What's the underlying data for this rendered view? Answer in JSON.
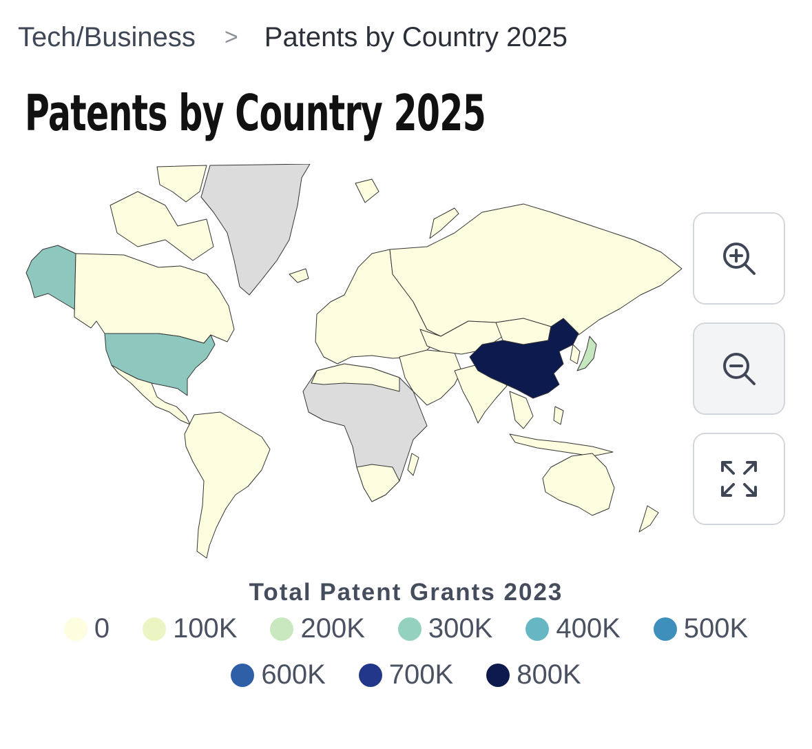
{
  "breadcrumb": {
    "parent": "Tech/Business",
    "separator": ">",
    "current": "Patents by Country 2025"
  },
  "title": "Patents by Country 2025",
  "map": {
    "colors": {
      "no_data": "#dcdcdc",
      "border": "#333333",
      "ocean": "#ffffff"
    },
    "highlighted_countries": [
      {
        "name": "China",
        "color": "#0c1a4e"
      },
      {
        "name": "United States",
        "color": "#8ec7bd"
      },
      {
        "name": "Japan",
        "color": "#c6e6bf"
      }
    ]
  },
  "controls": {
    "zoom_in_icon": "zoom-in-icon",
    "zoom_out_icon": "zoom-out-icon",
    "fullscreen_icon": "fullscreen-icon"
  },
  "legend": {
    "title": "Total Patent Grants 2023",
    "items": [
      {
        "label": "0",
        "color": "#fdfde0"
      },
      {
        "label": "100K",
        "color": "#ebf5c4"
      },
      {
        "label": "200K",
        "color": "#c9e8c0"
      },
      {
        "label": "300K",
        "color": "#94d1bf"
      },
      {
        "label": "400K",
        "color": "#66b6c4"
      },
      {
        "label": "500K",
        "color": "#3f8fbc"
      },
      {
        "label": "600K",
        "color": "#2f5fa6"
      },
      {
        "label": "700K",
        "color": "#22378a"
      },
      {
        "label": "800K",
        "color": "#0c1a4e"
      }
    ]
  }
}
